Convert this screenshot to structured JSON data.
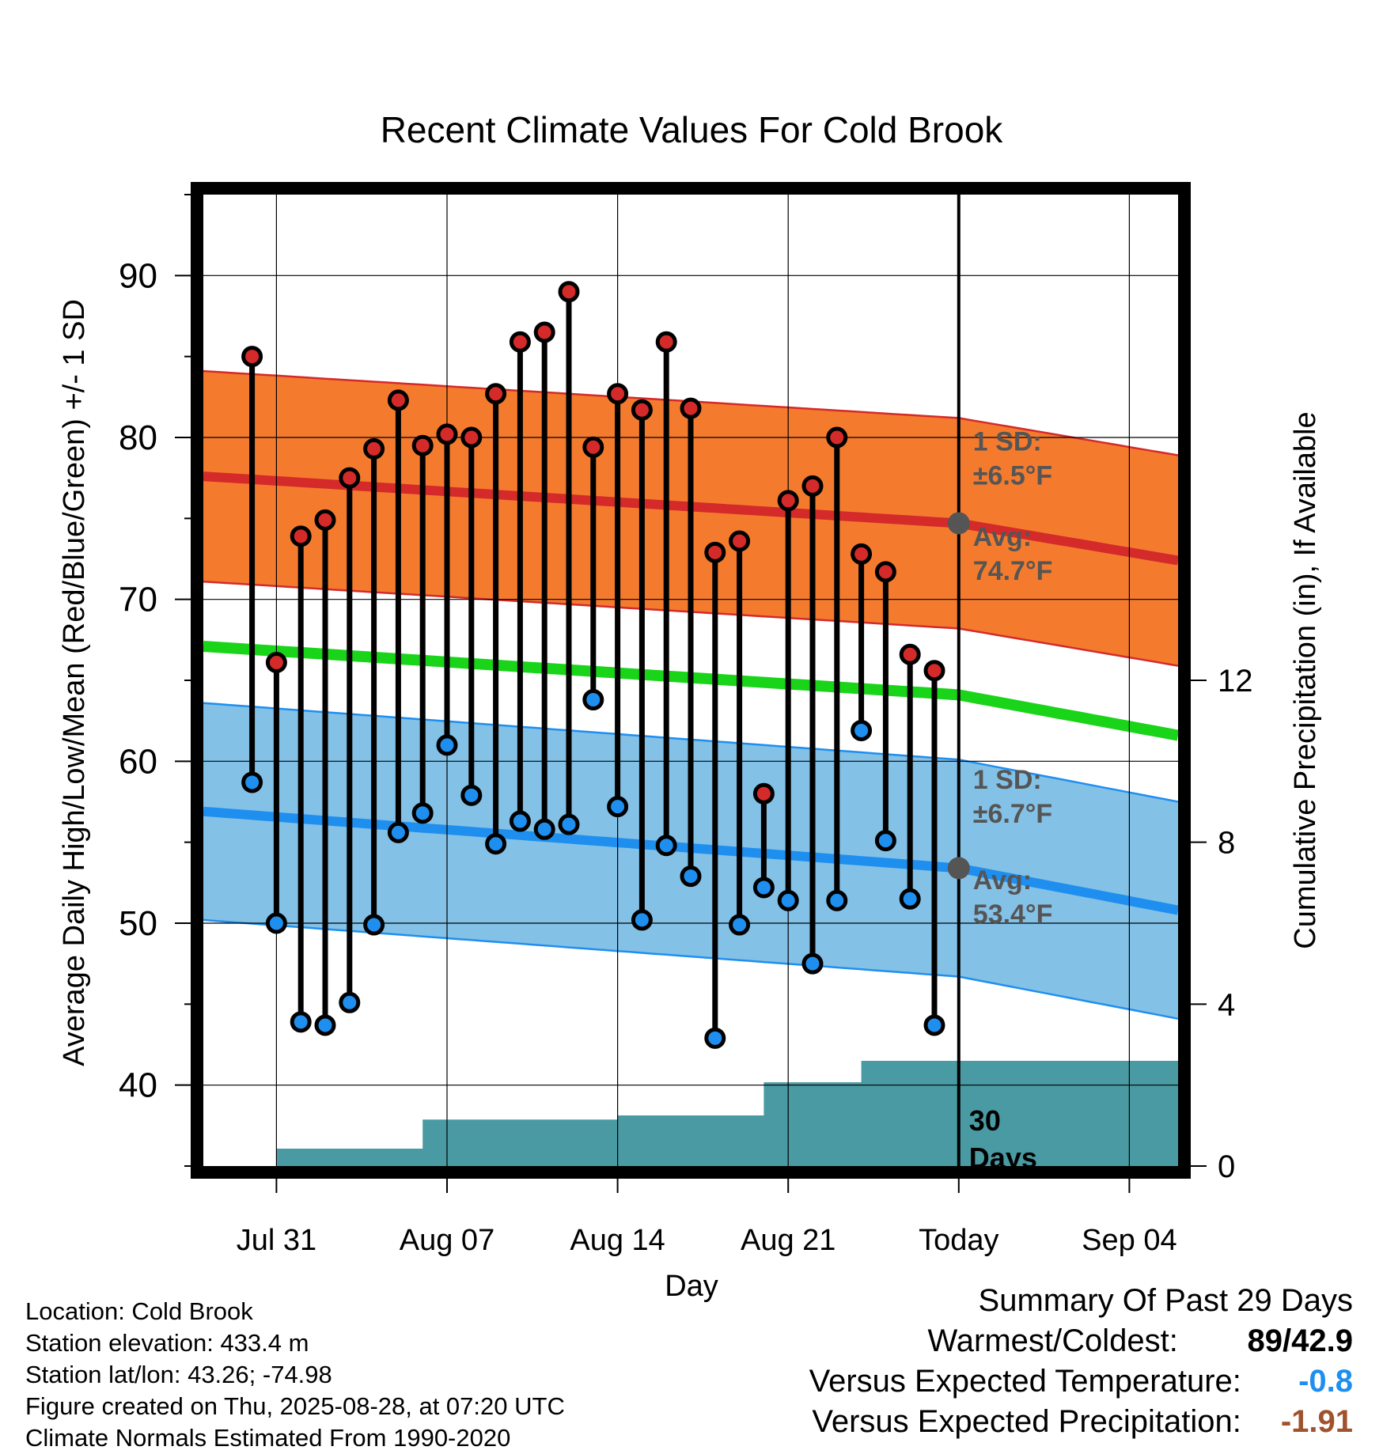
{
  "chart_data": {
    "type": "line",
    "title": "Recent Climate Values For Cold Brook",
    "xlabel": "Day",
    "ylabel": "Average Daily High/Low/Mean (Red/Blue/Green) +/- 1 SD",
    "y2label": "Cumulative Precipitation (in), If Available",
    "ylim": [
      35,
      95
    ],
    "y2lim": [
      0,
      24
    ],
    "y_ticks": [
      40,
      50,
      60,
      70,
      80,
      90
    ],
    "y2_ticks": [
      0,
      4,
      8,
      12
    ],
    "x_tick_labels": [
      "Jul 31",
      "Aug 07",
      "Aug 14",
      "Aug 21",
      "Today",
      "Sep 04"
    ],
    "x_tick_dates": [
      "2025-07-31",
      "2025-08-07",
      "2025-08-14",
      "2025-08-21",
      "2025-08-28",
      "2025-09-04"
    ],
    "x_range": [
      "2025-07-28",
      "2025-09-06"
    ],
    "today": "2025-08-28",
    "grid": true,
    "dates": [
      "2025-07-30",
      "2025-07-31",
      "2025-08-01",
      "2025-08-02",
      "2025-08-03",
      "2025-08-04",
      "2025-08-05",
      "2025-08-06",
      "2025-08-07",
      "2025-08-08",
      "2025-08-09",
      "2025-08-10",
      "2025-08-11",
      "2025-08-12",
      "2025-08-13",
      "2025-08-14",
      "2025-08-15",
      "2025-08-16",
      "2025-08-17",
      "2025-08-18",
      "2025-08-19",
      "2025-08-20",
      "2025-08-21",
      "2025-08-22",
      "2025-08-23",
      "2025-08-24",
      "2025-08-25",
      "2025-08-26",
      "2025-08-27"
    ],
    "series": [
      {
        "name": "High",
        "color": "#d42a2a",
        "values": [
          85,
          66.1,
          73.9,
          74.9,
          77.5,
          79.3,
          82.3,
          79.5,
          80.2,
          80,
          82.7,
          85.9,
          86.5,
          89,
          79.4,
          82.7,
          81.7,
          85.9,
          81.8,
          72.9,
          73.6,
          58,
          76.1,
          77,
          80,
          72.8,
          71.7,
          66.6,
          65.6
        ]
      },
      {
        "name": "Low",
        "color": "#1f8fef",
        "values": [
          58.7,
          50,
          43.9,
          43.7,
          45.1,
          49.9,
          55.6,
          56.8,
          61,
          57.9,
          54.9,
          56.3,
          55.8,
          56.1,
          63.8,
          57.2,
          50.2,
          54.8,
          52.9,
          42.9,
          49.9,
          52.2,
          51.4,
          47.5,
          51.4,
          61.9,
          55.1,
          51.5,
          43.7
        ]
      }
    ],
    "normals": {
      "dates": [
        "2025-07-28",
        "2025-08-28",
        "2025-09-06"
      ],
      "high_avg": [
        77.6,
        74.7,
        72.4
      ],
      "high_sd": 6.5,
      "low_avg": [
        56.9,
        53.4,
        50.8
      ],
      "low_sd": 6.7,
      "mean_avg": [
        67.1,
        64.1,
        61.6
      ],
      "colors": {
        "high_band": "#f47b2e",
        "high_line": "#d42a2a",
        "low_band": "#84c1e6",
        "low_line": "#1f8fef",
        "mean_line": "#19d419",
        "precip": "#4a9aa3"
      }
    },
    "precip_cumulative": {
      "steps": [
        {
          "date": "2025-07-28",
          "value": 0
        },
        {
          "date": "2025-07-30",
          "value": 0
        },
        {
          "date": "2025-07-31",
          "value": 0.43
        },
        {
          "date": "2025-08-06",
          "value": 1.15
        },
        {
          "date": "2025-08-14",
          "value": 1.25
        },
        {
          "date": "2025-08-20",
          "value": 2.07
        },
        {
          "date": "2025-08-24",
          "value": 2.6
        },
        {
          "date": "2025-09-06",
          "value": 2.6
        }
      ]
    },
    "annotations": {
      "high_sd_label": "1 SD:",
      "high_sd_value": "±6.5°F",
      "high_avg_label": "Avg:",
      "high_avg_value": "74.7°F",
      "low_sd_label": "1 SD:",
      "low_sd_value": "±6.7°F",
      "low_avg_label": "Avg:",
      "low_avg_value": "53.4°F",
      "days_line1": "30",
      "days_line2": "Days"
    }
  },
  "info": {
    "location": "Location: Cold Brook",
    "elevation": "Station elevation: 433.4 m",
    "latlon": "Station lat/lon: 43.26; -74.98",
    "created": "Figure created on Thu, 2025-08-28, at 07:20 UTC",
    "normals": "Climate Normals Estimated From 1990-2020"
  },
  "summary": {
    "title": "Summary Of Past 29 Days",
    "warmest_label": "Warmest/Coldest:",
    "warmest_value": "89/42.9",
    "temp_label": "Versus Expected Temperature:",
    "temp_value": "-0.8",
    "temp_color": "#1f8fef",
    "precip_label": "Versus Expected Precipitation:",
    "precip_value": "-1.91",
    "precip_color": "#a0522d"
  }
}
